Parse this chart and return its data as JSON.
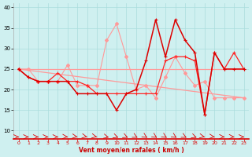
{
  "bg_color": "#cff0f0",
  "grid_color": "#aadddd",
  "line_light_color": "#ff9999",
  "line_dark_color": "#dd0000",
  "line_medium_color": "#ff2222",
  "xlabel": "Vent moyen/en rafales ( km/h )",
  "xlabel_color": "#cc0000",
  "yticks": [
    10,
    15,
    20,
    25,
    30,
    35,
    40
  ],
  "xticks": [
    0,
    1,
    2,
    3,
    4,
    5,
    6,
    7,
    8,
    9,
    10,
    11,
    12,
    13,
    14,
    15,
    16,
    17,
    18,
    19,
    20,
    21,
    22,
    23
  ],
  "xlim": [
    -0.5,
    23.5
  ],
  "ylim": [
    8,
    41
  ],
  "trend1_x": [
    0,
    23
  ],
  "trend1_y": [
    25.0,
    18.0
  ],
  "trend2_x": [
    0,
    23
  ],
  "trend2_y": [
    25.0,
    25.0
  ],
  "series_light_x": [
    0,
    1,
    2,
    3,
    4,
    5,
    6,
    7,
    8,
    9,
    10,
    11,
    12,
    13,
    14,
    15,
    16,
    17,
    18,
    19,
    20,
    21,
    22,
    23
  ],
  "series_light_y": [
    25,
    25,
    22,
    22,
    22,
    26,
    21,
    21,
    21,
    32,
    36,
    28,
    20,
    21,
    18,
    23,
    28,
    24,
    21,
    22,
    18,
    18,
    18,
    18
  ],
  "series_dark1_x": [
    0,
    1,
    2,
    3,
    4,
    5,
    6,
    7,
    8,
    9,
    10,
    11,
    12,
    13,
    14,
    15,
    16,
    17,
    18,
    19,
    20,
    21,
    22,
    23
  ],
  "series_dark1_y": [
    25,
    23,
    22,
    22,
    24,
    22,
    22,
    21,
    19,
    19,
    19,
    19,
    19,
    19,
    19,
    27,
    28,
    28,
    27,
    14,
    29,
    25,
    29,
    25
  ],
  "series_dark2_x": [
    0,
    1,
    2,
    3,
    4,
    5,
    6,
    7,
    8,
    9,
    10,
    11,
    12,
    13,
    14,
    15,
    16,
    17,
    18,
    19,
    20,
    21,
    22,
    23
  ],
  "series_dark2_y": [
    25,
    23,
    22,
    22,
    22,
    22,
    19,
    19,
    19,
    19,
    15,
    19,
    20,
    27,
    37,
    28,
    37,
    32,
    29,
    14,
    29,
    25,
    25,
    25
  ],
  "arrow_angles_deg": [
    90,
    90,
    90,
    90,
    90,
    100,
    110,
    115,
    115,
    120,
    130,
    135,
    140,
    145,
    145,
    145,
    145,
    140,
    130,
    115,
    105,
    95,
    95,
    90
  ]
}
